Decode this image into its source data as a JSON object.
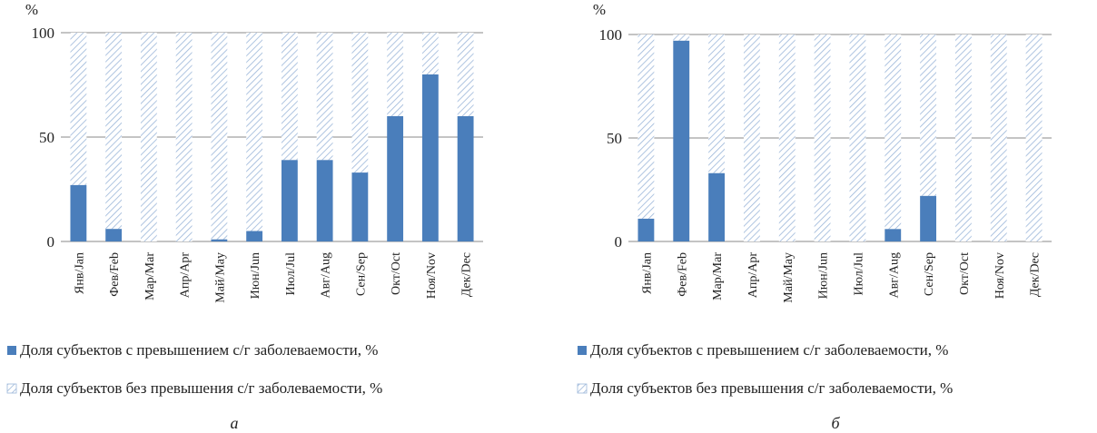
{
  "chart_data": [
    {
      "type": "bar",
      "stacked": true,
      "panel_label": "а",
      "y_unit": "%",
      "ylim": [
        0,
        100
      ],
      "yticks": [
        0,
        50,
        100
      ],
      "grid": true,
      "legend_position": "bottom",
      "categories": [
        "Янв/Jan",
        "Фев/Feb",
        "Мар/Mar",
        "Апр/Apr",
        "Май/May",
        "Июн/Jun",
        "Июл/Jul",
        "Авг/Aug",
        "Сен/Sep",
        "Окт/Oct",
        "Ноя/Nov",
        "Дек/Dec"
      ],
      "series": [
        {
          "name": "Доля субъектов с превышением с/г заболеваемости, %",
          "values": [
            27,
            6,
            0,
            0,
            1,
            5,
            39,
            39,
            33,
            60,
            80,
            60
          ]
        },
        {
          "name": "Доля субъектов без превышения с/г заболеваемости, %",
          "values": [
            73,
            94,
            100,
            100,
            99,
            95,
            61,
            61,
            67,
            40,
            20,
            40
          ]
        }
      ]
    },
    {
      "type": "bar",
      "stacked": true,
      "panel_label": "б",
      "y_unit": "%",
      "ylim": [
        0,
        100
      ],
      "yticks": [
        0,
        50,
        100
      ],
      "grid": true,
      "legend_position": "bottom",
      "categories": [
        "Янв/Jan",
        "Фев/Feb",
        "Мар/Mar",
        "Апр/Apr",
        "Май/May",
        "Июн/Jun",
        "Июл/Jul",
        "Авг/Aug",
        "Сен/Sep",
        "Окт/Oct",
        "Ноя/Nov",
        "Дек/Dec"
      ],
      "series": [
        {
          "name": "Доля субъектов с превышением с/г заболеваемости, %",
          "values": [
            11,
            97,
            33,
            0,
            0,
            0,
            0,
            6,
            22,
            0,
            0,
            0
          ]
        },
        {
          "name": "Доля субъектов без превышения с/г заболеваемости, %",
          "values": [
            89,
            3,
            67,
            100,
            100,
            100,
            100,
            94,
            78,
            100,
            100,
            100
          ]
        }
      ]
    }
  ],
  "colors": {
    "exceed": "#4a7ebb",
    "no_exceed_hatch": "#9bb6d9",
    "grid": "#8a8a8a"
  }
}
